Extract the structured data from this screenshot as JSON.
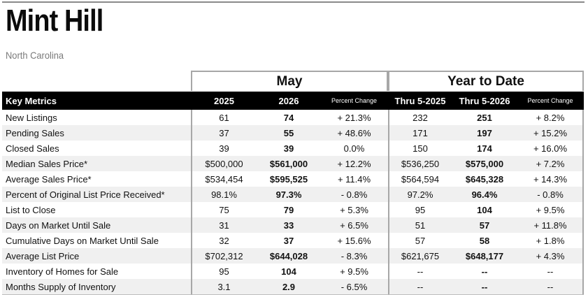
{
  "report": {
    "title": "Mint Hill",
    "subtitle": "North Carolina"
  },
  "groups": {
    "current": "May",
    "ytd": "Year to Date"
  },
  "columns": [
    "Key Metrics",
    "2025",
    "2026",
    "Percent Change",
    "Thru 5-2025",
    "Thru 5-2026",
    "Percent Change"
  ],
  "rows": [
    [
      "New Listings",
      "61",
      "74",
      "+ 21.3%",
      "232",
      "251",
      "+ 8.2%"
    ],
    [
      "Pending Sales",
      "37",
      "55",
      "+ 48.6%",
      "171",
      "197",
      "+ 15.2%"
    ],
    [
      "Closed Sales",
      "39",
      "39",
      "0.0%",
      "150",
      "174",
      "+ 16.0%"
    ],
    [
      "Median Sales Price*",
      "$500,000",
      "$561,000",
      "+ 12.2%",
      "$536,250",
      "$575,000",
      "+ 7.2%"
    ],
    [
      "Average Sales Price*",
      "$534,454",
      "$595,525",
      "+ 11.4%",
      "$564,594",
      "$645,328",
      "+ 14.3%"
    ],
    [
      "Percent of Original List Price Received*",
      "98.1%",
      "97.3%",
      "- 0.8%",
      "97.2%",
      "96.4%",
      "- 0.8%"
    ],
    [
      "List to Close",
      "75",
      "79",
      "+ 5.3%",
      "95",
      "104",
      "+ 9.5%"
    ],
    [
      "Days on Market Until Sale",
      "31",
      "33",
      "+ 6.5%",
      "51",
      "57",
      "+ 11.8%"
    ],
    [
      "Cumulative Days on Market Until Sale",
      "32",
      "37",
      "+ 15.6%",
      "57",
      "58",
      "+ 1.8%"
    ],
    [
      "Average List Price",
      "$702,312",
      "$644,028",
      "- 8.3%",
      "$621,675",
      "$648,177",
      "+ 4.3%"
    ],
    [
      "Inventory of Homes for Sale",
      "95",
      "104",
      "+ 9.5%",
      "--",
      "--",
      "--"
    ],
    [
      "Months Supply of Inventory",
      "3.1",
      "2.9",
      "- 6.5%",
      "--",
      "--",
      "--"
    ]
  ]
}
